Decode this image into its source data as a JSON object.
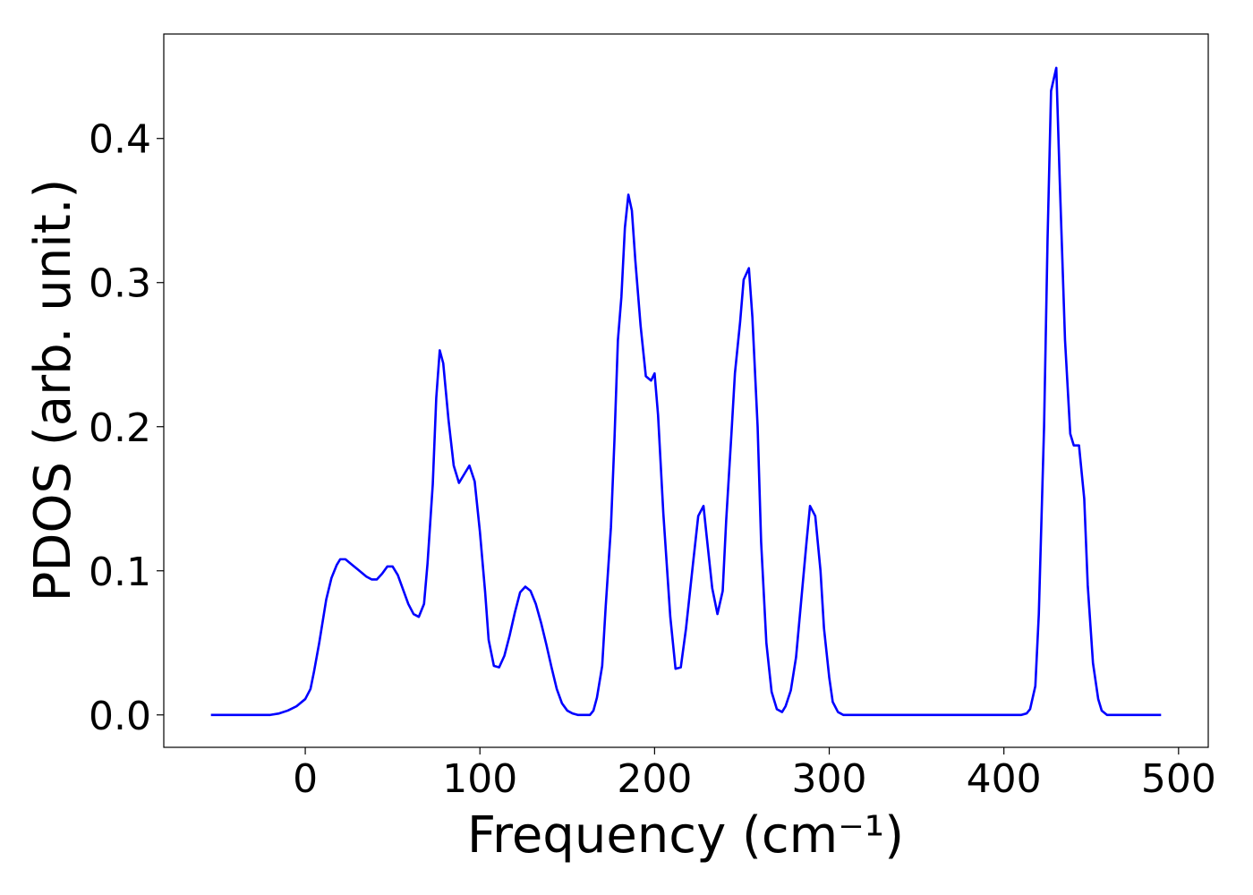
{
  "chart_data": {
    "type": "line",
    "xlabel": "Frequency (cm⁻¹)",
    "ylabel": "PDOS (arb. unit.)",
    "xlim": [
      -81,
      517
    ],
    "ylim": [
      -0.0225,
      0.4725
    ],
    "xticks": [
      0,
      100,
      200,
      300,
      400,
      500
    ],
    "yticks": [
      {
        "value": 0,
        "label": "0.0"
      },
      0.1,
      0.2,
      0.3,
      0.4
    ],
    "grid": false,
    "series": [
      {
        "name": "PDOS",
        "color": "#0000ff",
        "x": [
          -54,
          -20,
          -15,
          -10,
          -5,
          0,
          3,
          5,
          8,
          12,
          15,
          18,
          20,
          23,
          27,
          30,
          35,
          38,
          41,
          44,
          47,
          50,
          53,
          56,
          59,
          62,
          65,
          68,
          70,
          73,
          75,
          77,
          79,
          82,
          85,
          88,
          91,
          94,
          97,
          100,
          103,
          105,
          108,
          111,
          114,
          117,
          120,
          123,
          126,
          129,
          132,
          135,
          138,
          141,
          144,
          147,
          150,
          153,
          156,
          163,
          165,
          167,
          170,
          172,
          175,
          177,
          179,
          181,
          183,
          185,
          187,
          189,
          192,
          195,
          198,
          200,
          202,
          205,
          209,
          212,
          215,
          218,
          222,
          225,
          228,
          230,
          233,
          236,
          239,
          241,
          244,
          246,
          249,
          251,
          254,
          256,
          259,
          261,
          264,
          267,
          270,
          273,
          275,
          278,
          281,
          284,
          287,
          289,
          292,
          295,
          297,
          300,
          302,
          305,
          308,
          410,
          413,
          415,
          418,
          420,
          423,
          425,
          427,
          430,
          432,
          435,
          438,
          440,
          443,
          446,
          448,
          451,
          454,
          456,
          459,
          490
        ],
        "values": [
          0,
          0,
          0.001,
          0.003,
          0.006,
          0.011,
          0.018,
          0.03,
          0.05,
          0.08,
          0.095,
          0.104,
          0.108,
          0.108,
          0.104,
          0.101,
          0.096,
          0.094,
          0.094,
          0.098,
          0.103,
          0.103,
          0.097,
          0.087,
          0.077,
          0.07,
          0.068,
          0.077,
          0.105,
          0.16,
          0.22,
          0.253,
          0.244,
          0.205,
          0.173,
          0.161,
          0.167,
          0.173,
          0.162,
          0.127,
          0.085,
          0.052,
          0.034,
          0.033,
          0.041,
          0.055,
          0.071,
          0.085,
          0.089,
          0.086,
          0.077,
          0.064,
          0.049,
          0.033,
          0.018,
          0.008,
          0.003,
          0.001,
          0,
          0,
          0.003,
          0.012,
          0.034,
          0.075,
          0.13,
          0.19,
          0.26,
          0.29,
          0.338,
          0.361,
          0.35,
          0.315,
          0.27,
          0.235,
          0.232,
          0.237,
          0.208,
          0.14,
          0.068,
          0.032,
          0.033,
          0.06,
          0.105,
          0.138,
          0.145,
          0.122,
          0.088,
          0.07,
          0.086,
          0.135,
          0.195,
          0.237,
          0.273,
          0.302,
          0.31,
          0.276,
          0.2,
          0.12,
          0.05,
          0.016,
          0.004,
          0.002,
          0.006,
          0.017,
          0.04,
          0.08,
          0.12,
          0.145,
          0.138,
          0.1,
          0.06,
          0.026,
          0.009,
          0.002,
          0,
          0,
          0.001,
          0.004,
          0.02,
          0.07,
          0.2,
          0.33,
          0.433,
          0.449,
          0.37,
          0.26,
          0.195,
          0.187,
          0.187,
          0.15,
          0.09,
          0.036,
          0.011,
          0.003,
          0,
          0
        ]
      }
    ]
  }
}
